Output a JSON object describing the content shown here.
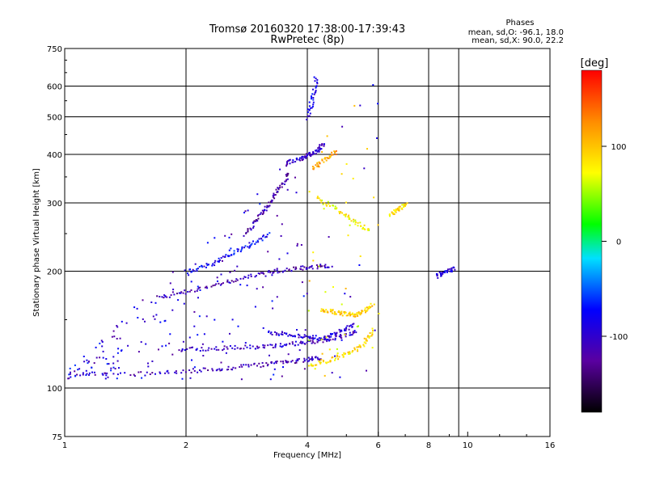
{
  "title_line1": "Tromsø 20160320 17:38:00-17:39:43",
  "title_line2": "RwPretec (8p)",
  "stats": {
    "heading": "Phases",
    "line_o": "mean, sd,O: -96.1, 18.0",
    "line_x": "mean, sd,X:  90.0, 22.2"
  },
  "colorbar": {
    "label": "[deg]",
    "ticks": [
      {
        "value": 100,
        "label": "100"
      },
      {
        "value": 0,
        "label": "0"
      },
      {
        "value": -100,
        "label": "-100"
      }
    ],
    "range": [
      -180,
      180
    ]
  },
  "chart_data": {
    "type": "scatter",
    "xlabel": "Frequency [MHz]",
    "ylabel": "Stationary phase Virtual Height [km]",
    "x_scale": "log",
    "y_scale": "log",
    "xlim": [
      1,
      16
    ],
    "ylim": [
      75,
      750
    ],
    "xticks": [
      {
        "value": 1,
        "label": "1"
      },
      {
        "value": 2,
        "label": "2"
      },
      {
        "value": 4,
        "label": "4"
      },
      {
        "value": 6,
        "label": "6"
      },
      {
        "value": 8,
        "label": "8"
      },
      {
        "value": 10,
        "label": "10"
      },
      {
        "value": 16,
        "label": "16"
      }
    ],
    "yticks": [
      {
        "value": 75,
        "label": "75"
      },
      {
        "value": 100,
        "label": "100"
      },
      {
        "value": 200,
        "label": "200"
      },
      {
        "value": 300,
        "label": "300"
      },
      {
        "value": 400,
        "label": "400"
      },
      {
        "value": 500,
        "label": "500"
      },
      {
        "value": 600,
        "label": "600"
      },
      {
        "value": 750,
        "label": "750"
      }
    ],
    "grid_x": [
      2,
      4,
      6,
      8,
      9.5
    ],
    "grid_y": [
      100,
      200,
      300,
      400,
      500,
      600
    ],
    "color_quantity": "phase [deg]",
    "traces": [
      {
        "f": [
          1.0,
          1.5,
          2.0,
          2.5,
          3.0,
          3.5,
          4.0,
          4.3
        ],
        "h": [
          109,
          109,
          111,
          113,
          115,
          117,
          119,
          120
        ],
        "phase": -110
      },
      {
        "f": [
          1.9,
          2.3,
          2.8,
          3.3,
          3.8,
          4.3,
          4.8,
          5.3
        ],
        "h": [
          126,
          127,
          128,
          129,
          131,
          133,
          136,
          140
        ],
        "phase": -105
      },
      {
        "f": [
          1.7,
          2.1,
          2.6,
          3.1,
          3.6,
          4.1,
          4.6
        ],
        "h": [
          172,
          180,
          190,
          198,
          203,
          206,
          208
        ],
        "phase": -115
      },
      {
        "f": [
          2.0,
          2.3,
          2.6,
          2.9,
          3.2
        ],
        "h": [
          200,
          210,
          224,
          236,
          250
        ],
        "phase": -80
      },
      {
        "f": [
          2.8,
          3.0,
          3.2,
          3.4,
          3.6
        ],
        "h": [
          250,
          275,
          300,
          330,
          360
        ],
        "phase": -120
      },
      {
        "f": [
          3.5,
          3.8,
          4.0,
          4.2,
          4.4
        ],
        "h": [
          380,
          390,
          400,
          410,
          430
        ],
        "phase": -105
      },
      {
        "f": [
          4.0,
          4.1,
          4.2
        ],
        "h": [
          500,
          560,
          640
        ],
        "phase": -85
      },
      {
        "f": [
          3.2,
          3.6,
          4.0,
          4.4,
          4.8,
          5.2
        ],
        "h": [
          140,
          138,
          136,
          135,
          140,
          147
        ],
        "phase": -95
      },
      {
        "f": [
          4.0,
          4.5,
          5.0,
          5.5,
          5.8
        ],
        "h": [
          115,
          118,
          123,
          130,
          142
        ],
        "phase": 85
      },
      {
        "f": [
          4.3,
          4.6,
          4.9,
          5.2,
          5.5,
          5.8
        ],
        "h": [
          160,
          158,
          156,
          155,
          158,
          165
        ],
        "phase": 95
      },
      {
        "f": [
          4.2,
          4.7,
          5.2,
          5.7
        ],
        "h": [
          310,
          290,
          270,
          255
        ],
        "phase": 75
      },
      {
        "f": [
          4.1,
          4.4,
          4.7
        ],
        "h": [
          370,
          390,
          410
        ],
        "phase": 115
      },
      {
        "f": [
          6.4,
          6.7,
          7.0
        ],
        "h": [
          280,
          290,
          300
        ],
        "phase": 90
      },
      {
        "f": [
          8.3,
          8.8,
          9.3
        ],
        "h": [
          195,
          200,
          205
        ],
        "phase": -90
      }
    ]
  }
}
